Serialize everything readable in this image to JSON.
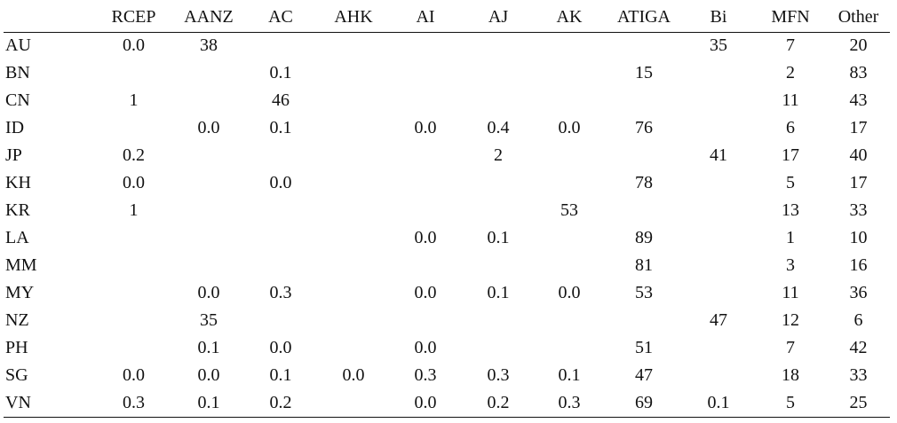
{
  "table": {
    "columns": [
      "",
      "RCEP",
      "AANZ",
      "AC",
      "AHK",
      "AI",
      "AJ",
      "AK",
      "ATIGA",
      "Bi",
      "MFN",
      "Other"
    ],
    "rows": [
      {
        "label": "AU",
        "cells": [
          "0.0",
          "38",
          "",
          "",
          "",
          "",
          "",
          "",
          "35",
          "7",
          "20"
        ]
      },
      {
        "label": "BN",
        "cells": [
          "",
          "",
          "0.1",
          "",
          "",
          "",
          "",
          "15",
          "",
          "2",
          "83"
        ]
      },
      {
        "label": "CN",
        "cells": [
          "1",
          "",
          "46",
          "",
          "",
          "",
          "",
          "",
          "",
          "11",
          "43"
        ]
      },
      {
        "label": "ID",
        "cells": [
          "",
          "0.0",
          "0.1",
          "",
          "0.0",
          "0.4",
          "0.0",
          "76",
          "",
          "6",
          "17"
        ]
      },
      {
        "label": "JP",
        "cells": [
          "0.2",
          "",
          "",
          "",
          "",
          "2",
          "",
          "",
          "41",
          "17",
          "40"
        ]
      },
      {
        "label": "KH",
        "cells": [
          "0.0",
          "",
          "0.0",
          "",
          "",
          "",
          "",
          "78",
          "",
          "5",
          "17"
        ]
      },
      {
        "label": "KR",
        "cells": [
          "1",
          "",
          "",
          "",
          "",
          "",
          "53",
          "",
          "",
          "13",
          "33"
        ]
      },
      {
        "label": "LA",
        "cells": [
          "",
          "",
          "",
          "",
          "0.0",
          "0.1",
          "",
          "89",
          "",
          "1",
          "10"
        ]
      },
      {
        "label": "MM",
        "cells": [
          "",
          "",
          "",
          "",
          "",
          "",
          "",
          "81",
          "",
          "3",
          "16"
        ]
      },
      {
        "label": "MY",
        "cells": [
          "",
          "0.0",
          "0.3",
          "",
          "0.0",
          "0.1",
          "0.0",
          "53",
          "",
          "11",
          "36"
        ]
      },
      {
        "label": "NZ",
        "cells": [
          "",
          "35",
          "",
          "",
          "",
          "",
          "",
          "",
          "47",
          "12",
          "6"
        ]
      },
      {
        "label": "PH",
        "cells": [
          "",
          "0.1",
          "0.0",
          "",
          "0.0",
          "",
          "",
          "51",
          "",
          "7",
          "42"
        ]
      },
      {
        "label": "SG",
        "cells": [
          "0.0",
          "0.0",
          "0.1",
          "0.0",
          "0.3",
          "0.3",
          "0.1",
          "47",
          "",
          "18",
          "33"
        ]
      },
      {
        "label": "VN",
        "cells": [
          "0.3",
          "0.1",
          "0.2",
          "",
          "0.0",
          "0.2",
          "0.3",
          "69",
          "0.1",
          "5",
          "25"
        ]
      }
    ]
  }
}
